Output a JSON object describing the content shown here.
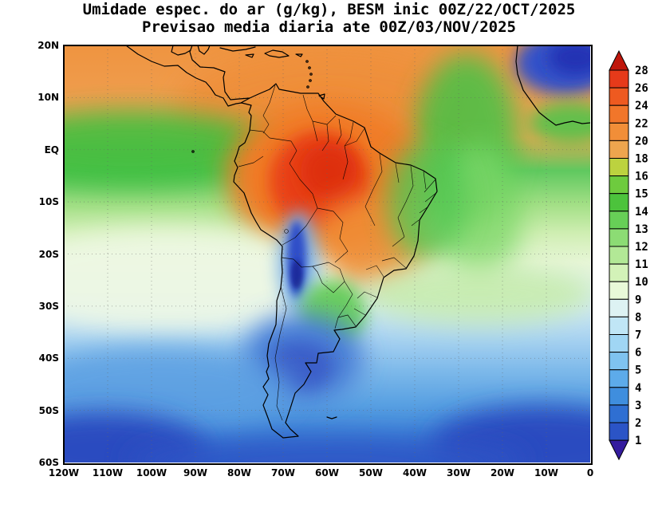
{
  "title": {
    "line1": "Umidade espec. do ar (g/kg), BESM inic 00Z/22/OCT/2025",
    "line2": "Previsao media diaria ate 00Z/03/NOV/2025"
  },
  "chart_data": {
    "type": "heatmap",
    "variable": "Umidade especifica do ar",
    "units": "g/kg",
    "model": "BESM",
    "init_time": "00Z/22/OCT/2025",
    "valid_through": "00Z/03/NOV/2025",
    "x_axis": {
      "ticks": [
        "120W",
        "110W",
        "100W",
        "90W",
        "80W",
        "70W",
        "60W",
        "50W",
        "40W",
        "30W",
        "20W",
        "10W",
        "0"
      ],
      "range_deg_lon": [
        -120,
        0
      ],
      "grid_step_deg": 10,
      "grid_style": "dotted"
    },
    "y_axis": {
      "ticks": [
        "20N",
        "10N",
        "EQ",
        "10S",
        "20S",
        "30S",
        "40S",
        "50S",
        "60S"
      ],
      "range_deg_lat": [
        20,
        -60
      ],
      "grid_step_deg": 10,
      "grid_style": "dotted"
    },
    "colorbar": {
      "position": "right",
      "labels_top_to_bottom": [
        "28",
        "26",
        "24",
        "22",
        "20",
        "18",
        "16",
        "15",
        "14",
        "13",
        "12",
        "11",
        "10",
        "9",
        "8",
        "7",
        "6",
        "5",
        "4",
        "3",
        "2",
        "1"
      ],
      "segment_colors_top_to_bottom": [
        "#bf160b",
        "#e63a1a",
        "#ee5a20",
        "#f1762a",
        "#f18e38",
        "#eea54e",
        "#bcd23f",
        "#6ecb3e",
        "#4cc33c",
        "#67cf57",
        "#8cdc74",
        "#b2e896",
        "#d3f2b8",
        "#e9f9d8",
        "#ddf2f3",
        "#c0e6f6",
        "#a0d6f4",
        "#7fc3f0",
        "#5dabea",
        "#3f8ede",
        "#2f6fd2",
        "#2b54c6",
        "#2c3ab2",
        "#341b9e"
      ],
      "has_top_arrow": true,
      "has_bottom_arrow": true
    },
    "field_summary": [
      {
        "region": "Amazonia central e norte",
        "value_g_kg": "22-28 (nucleo vermelho)"
      },
      {
        "region": "Faixa tropical norte (Caribe, Atlantico tropical, Guianas)",
        "value_g_kg": "18-22"
      },
      {
        "region": "Pacifico leste 10N-EQ (ITCZ)",
        "value_g_kg": "14-16"
      },
      {
        "region": "Atlantico 30W-40W EQ",
        "value_g_kg": "14-16"
      },
      {
        "region": "Leste do Brasil",
        "value_g_kg": "13-16"
      },
      {
        "region": "Sahara / canto nordeste do mapa",
        "value_g_kg": "2-5 (azul escuro)"
      },
      {
        "region": "Andes subtropicais ~23S",
        "value_g_kg": "2-5 (faixa azul escura estreita)"
      },
      {
        "region": "Pacifico sudeste subtropical 20-30S",
        "value_g_kg": "9-11"
      },
      {
        "region": "Sul do Brasil / Paraguai",
        "value_g_kg": "12-15"
      },
      {
        "region": "Atlantico 25-30S",
        "value_g_kg": "11-13"
      },
      {
        "region": "Patagonia / oceanos 40-50S",
        "value_g_kg": "4-7"
      },
      {
        "region": "Extremo sul 55-60S",
        "value_g_kg": "2-4"
      }
    ]
  },
  "layout_labels": {
    "map_name": "south-america-specific-humidity-map"
  }
}
